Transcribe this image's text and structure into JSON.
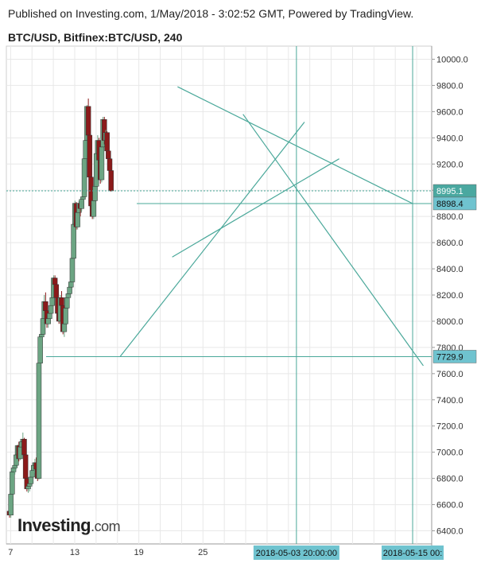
{
  "header": {
    "published": "Published on Investing.com, 1/May/2018 - 3:02:52 GMT, Powered by TradingView.",
    "symbol": "BTC/USD, Bitfinex:BTC/USD, 240"
  },
  "logo": {
    "main": "Investing",
    "suffix": ".com"
  },
  "colors": {
    "up": "#6ca583",
    "down": "#8b1a1a",
    "line": "#4aa89a",
    "label_bg": "#6fc3cf",
    "grid": "#e8e8e8"
  },
  "chart_data": {
    "type": "candlestick",
    "title": "BTC/USD, Bitfinex:BTC/USD, 240",
    "ylim": [
      6300,
      10100
    ],
    "y_ticks": [
      6400,
      6600,
      6800,
      7000,
      7200,
      7400,
      7600,
      7800,
      8000,
      8200,
      8400,
      8600,
      8800,
      9000,
      9200,
      9400,
      9600,
      9800,
      10000
    ],
    "y_tick_labels": [
      "6400.0",
      "6600.0",
      "6800.0",
      "7000.0",
      "7200.0",
      "7400.0",
      "7600.0",
      "7800.0",
      "8000.0",
      "8200.0",
      "8400.0",
      "8600.0",
      "8800.0",
      "9000.0",
      "9200.0",
      "9400.0",
      "9600.0",
      "9800.0",
      "10000.0"
    ],
    "x_tick_labels": [
      "7",
      "13",
      "19",
      "25"
    ],
    "x_tick_bars": [
      2,
      50,
      98,
      146
    ],
    "price_labels": [
      {
        "text": "8995.1",
        "value": 8995.1,
        "style": "dotted"
      },
      {
        "text": "8898.4",
        "value": 8898.4,
        "style": "solid"
      },
      {
        "text": "7729.9",
        "value": 7729.9,
        "style": "solid"
      }
    ],
    "vertical_labels": [
      {
        "text": "2018-05-03 20:00:00",
        "bar": 216
      },
      {
        "text": "2018-05-15 00:",
        "bar": 303
      }
    ],
    "trend_lines": [
      {
        "start": [
          127,
          9790
        ],
        "end": [
          303,
          8898
        ]
      },
      {
        "start": [
          176,
          9580
        ],
        "end": [
          311,
          7660
        ]
      },
      {
        "start": [
          84,
          7730
        ],
        "end": [
          222,
          9520
        ]
      },
      {
        "start": [
          123,
          8490
        ],
        "end": [
          248,
          9240
        ]
      }
    ],
    "candles_ohlc": [
      [
        6550,
        6600,
        6500,
        6520
      ],
      [
        6520,
        6700,
        6500,
        6680
      ],
      [
        6680,
        6870,
        6650,
        6850
      ],
      [
        6850,
        6900,
        6800,
        6880
      ],
      [
        6880,
        6950,
        6830,
        6900
      ],
      [
        6900,
        7000,
        6870,
        6980
      ],
      [
        6980,
        7060,
        6950,
        7050
      ],
      [
        7050,
        7080,
        6930,
        6950
      ],
      [
        6950,
        7050,
        6940,
        7040
      ],
      [
        7040,
        7090,
        7000,
        7080
      ],
      [
        7080,
        7150,
        7050,
        7100
      ],
      [
        7100,
        7110,
        6950,
        6980
      ],
      [
        6980,
        6990,
        6790,
        6800
      ],
      [
        6800,
        6810,
        6700,
        6720
      ],
      [
        6720,
        6760,
        6690,
        6740
      ],
      [
        6740,
        6780,
        6700,
        6760
      ],
      [
        6760,
        6820,
        6740,
        6810
      ],
      [
        6810,
        6880,
        6790,
        6860
      ],
      [
        6860,
        6920,
        6820,
        6900
      ],
      [
        6900,
        6950,
        6840,
        6920
      ],
      [
        6920,
        6960,
        6850,
        6870
      ],
      [
        6870,
        6900,
        6780,
        6800
      ],
      [
        6800,
        7700,
        6790,
        7680
      ],
      [
        7680,
        7900,
        7650,
        7880
      ],
      [
        7880,
        7950,
        7840,
        7900
      ],
      [
        7900,
        8050,
        7880,
        8020
      ],
      [
        8020,
        8200,
        8000,
        8150
      ],
      [
        8150,
        8220,
        8050,
        8080
      ],
      [
        8080,
        8120,
        7950,
        7980
      ],
      [
        7980,
        8050,
        7950,
        8020
      ],
      [
        8020,
        8080,
        7990,
        8060
      ],
      [
        8060,
        8150,
        8040,
        8120
      ],
      [
        8120,
        8200,
        8090,
        8180
      ],
      [
        8180,
        8350,
        8160,
        8330
      ],
      [
        8330,
        8350,
        8250,
        8280
      ],
      [
        8280,
        8290,
        8150,
        8180
      ],
      [
        8180,
        8200,
        8040,
        8060
      ],
      [
        8060,
        8100,
        7980,
        8000
      ],
      [
        8000,
        8200,
        7980,
        8180
      ],
      [
        8180,
        8230,
        8100,
        8120
      ],
      [
        8120,
        8140,
        7900,
        7920
      ],
      [
        7920,
        8000,
        7880,
        7980
      ],
      [
        7980,
        8120,
        7960,
        8100
      ],
      [
        8100,
        8200,
        8080,
        8180
      ],
      [
        8180,
        8230,
        8120,
        8210
      ],
      [
        8210,
        8280,
        8180,
        8260
      ],
      [
        8260,
        8320,
        8230,
        8300
      ],
      [
        8300,
        8500,
        8280,
        8480
      ],
      [
        8480,
        8750,
        8460,
        8740
      ],
      [
        8740,
        8920,
        8700,
        8900
      ],
      [
        8900,
        8910,
        8700,
        8720
      ],
      [
        8720,
        8850,
        8700,
        8830
      ],
      [
        8830,
        8920,
        8800,
        8900
      ],
      [
        8900,
        8920,
        8800,
        8860
      ],
      [
        8860,
        8950,
        8840,
        8930
      ],
      [
        8930,
        9000,
        8880,
        8950
      ],
      [
        8950,
        9250,
        8930,
        9240
      ],
      [
        9240,
        9400,
        9200,
        9380
      ],
      [
        9380,
        9650,
        9350,
        9640
      ],
      [
        9640,
        9700,
        9400,
        9420
      ],
      [
        9420,
        9450,
        9080,
        9100
      ],
      [
        9100,
        9110,
        8850,
        8880
      ],
      [
        8880,
        8900,
        8780,
        8800
      ],
      [
        8800,
        8950,
        8780,
        8920
      ],
      [
        8920,
        9050,
        8900,
        9030
      ],
      [
        9030,
        9300,
        9010,
        9280
      ],
      [
        9280,
        9420,
        9250,
        9380
      ],
      [
        9380,
        9400,
        9200,
        9230
      ],
      [
        9230,
        9300,
        9050,
        9080
      ],
      [
        9080,
        9350,
        9060,
        9330
      ],
      [
        9330,
        9560,
        9310,
        9540
      ],
      [
        9540,
        9560,
        9350,
        9380
      ],
      [
        9380,
        9460,
        9300,
        9440
      ],
      [
        9440,
        9450,
        9260,
        9300
      ],
      [
        9300,
        9340,
        9200,
        9240
      ],
      [
        9240,
        9300,
        9130,
        9150
      ],
      [
        9150,
        9160,
        8990,
        8995.1
      ]
    ]
  }
}
